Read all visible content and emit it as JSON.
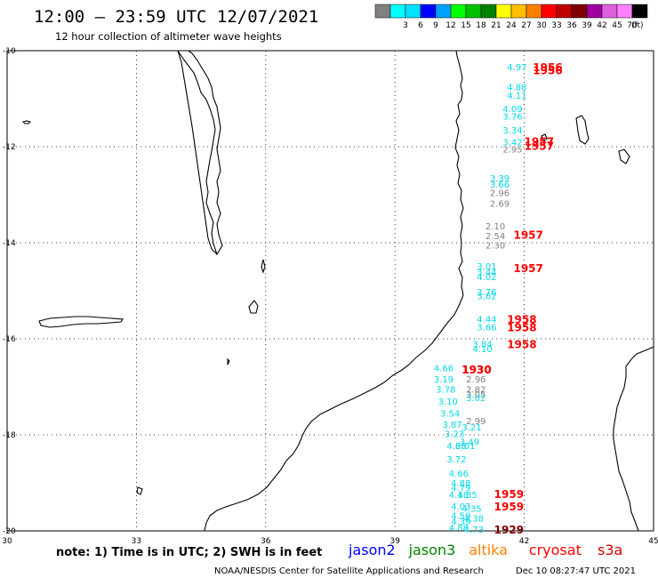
{
  "header": {
    "title": "12:00 — 23:59 UTC 12/07/2021",
    "subtitle": "12 hour collection of altimeter wave heights"
  },
  "colorbar": {
    "unit_label": "(ft)",
    "bins": [
      {
        "label": "",
        "color": "#808080"
      },
      {
        "label": "3",
        "color": "#00ffff"
      },
      {
        "label": "6",
        "color": "#00e0ff"
      },
      {
        "label": "9",
        "color": "#0000ff"
      },
      {
        "label": "12",
        "color": "#00a0ff"
      },
      {
        "label": "15",
        "color": "#00ff00"
      },
      {
        "label": "18",
        "color": "#00c000"
      },
      {
        "label": "21",
        "color": "#008000"
      },
      {
        "label": "24",
        "color": "#ffff00"
      },
      {
        "label": "27",
        "color": "#ffc000"
      },
      {
        "label": "30",
        "color": "#ff8000"
      },
      {
        "label": "33",
        "color": "#ff0000"
      },
      {
        "label": "36",
        "color": "#c00000"
      },
      {
        "label": "39",
        "color": "#800000"
      },
      {
        "label": "42",
        "color": "#a000a0"
      },
      {
        "label": "45",
        "color": "#e060e0"
      },
      {
        "label": "70",
        "color": "#ff80ff"
      },
      {
        "label": "",
        "color": "#000000"
      }
    ]
  },
  "axes": {
    "lon_labels": [
      "30",
      "33",
      "36",
      "39",
      "42",
      "45"
    ],
    "lat_labels": [
      "-10",
      "-12",
      "-14",
      "-16",
      "-18",
      "-20"
    ]
  },
  "legend": {
    "note": "note: 1) Time is in UTC; 2) SWH is in feet",
    "satellites": [
      {
        "name": "jason2",
        "color": "#0000ff"
      },
      {
        "name": "jason3",
        "color": "#008000"
      },
      {
        "name": "altika",
        "color": "#ff8000"
      },
      {
        "name": "cryosat",
        "color": "#ff0000"
      },
      {
        "name": "s3a",
        "color": "#cc0000"
      }
    ]
  },
  "footer": {
    "credit": "NOAA/NESDIS Center for Satellite Applications and Research",
    "timestamp": "Dec 10 08:27:47 UTC 2021"
  },
  "colors": {
    "cyan": "#00d8e8",
    "gray": "#808080",
    "red": "#ff0000",
    "darkred": "#800000",
    "grid": "#000000"
  },
  "map_data": {
    "lon_range": [
      30,
      45
    ],
    "lat_range": [
      -20,
      -10
    ],
    "observations": [
      {
        "lon": 41.6,
        "lat": -10.33,
        "label": "4.97",
        "color": "cyan"
      },
      {
        "lon": 41.6,
        "lat": -10.75,
        "label": "4.88",
        "color": "cyan"
      },
      {
        "lon": 41.6,
        "lat": -10.93,
        "label": "4.11",
        "color": "cyan"
      },
      {
        "lon": 41.5,
        "lat": -11.2,
        "label": "4.09",
        "color": "cyan"
      },
      {
        "lon": 41.5,
        "lat": -11.36,
        "label": "3.76",
        "color": "cyan"
      },
      {
        "lon": 41.5,
        "lat": -11.65,
        "label": "3.34",
        "color": "cyan"
      },
      {
        "lon": 41.5,
        "lat": -11.9,
        "label": "3.42",
        "color": "cyan"
      },
      {
        "lon": 41.5,
        "lat": -12.05,
        "label": "2.95",
        "color": "gray"
      },
      {
        "lon": 41.2,
        "lat": -12.65,
        "label": "3.39",
        "color": "cyan"
      },
      {
        "lon": 41.2,
        "lat": -12.78,
        "label": "3.66",
        "color": "cyan"
      },
      {
        "lon": 41.2,
        "lat": -12.95,
        "label": "2.96",
        "color": "gray"
      },
      {
        "lon": 41.2,
        "lat": -13.18,
        "label": "2.69",
        "color": "gray"
      },
      {
        "lon": 41.1,
        "lat": -13.65,
        "label": "2.10",
        "color": "gray"
      },
      {
        "lon": 41.1,
        "lat": -13.85,
        "label": "2.54",
        "color": "gray"
      },
      {
        "lon": 41.1,
        "lat": -14.05,
        "label": "2.30",
        "color": "gray"
      },
      {
        "lon": 40.9,
        "lat": -14.48,
        "label": "3.01",
        "color": "cyan"
      },
      {
        "lon": 40.9,
        "lat": -14.6,
        "label": "3.44",
        "color": "cyan"
      },
      {
        "lon": 40.9,
        "lat": -14.7,
        "label": "4.02",
        "color": "cyan"
      },
      {
        "lon": 40.9,
        "lat": -15.02,
        "label": "3.76",
        "color": "cyan"
      },
      {
        "lon": 40.9,
        "lat": -15.1,
        "label": "3.62",
        "color": "cyan"
      },
      {
        "lon": 40.9,
        "lat": -15.58,
        "label": "4.44",
        "color": "cyan"
      },
      {
        "lon": 40.9,
        "lat": -15.75,
        "label": "3.66",
        "color": "cyan"
      },
      {
        "lon": 40.8,
        "lat": -16.1,
        "label": "3.84",
        "color": "cyan"
      },
      {
        "lon": 40.8,
        "lat": -16.2,
        "label": "4.10",
        "color": "cyan"
      },
      {
        "lon": 39.9,
        "lat": -16.6,
        "label": "4.66",
        "color": "cyan"
      },
      {
        "lon": 39.9,
        "lat": -16.83,
        "label": "3.19",
        "color": "cyan"
      },
      {
        "lon": 40.65,
        "lat": -16.83,
        "label": "2.96",
        "color": "gray"
      },
      {
        "lon": 39.95,
        "lat": -17.05,
        "label": "3.78",
        "color": "cyan"
      },
      {
        "lon": 40.65,
        "lat": -17.05,
        "label": "2.82",
        "color": "gray"
      },
      {
        "lon": 40.65,
        "lat": -17.15,
        "label": "3.05",
        "color": "gray"
      },
      {
        "lon": 40.65,
        "lat": -17.22,
        "label": "3.02",
        "color": "cyan"
      },
      {
        "lon": 40.0,
        "lat": -17.3,
        "label": "3.10",
        "color": "cyan"
      },
      {
        "lon": 40.05,
        "lat": -17.55,
        "label": "3.54",
        "color": "cyan"
      },
      {
        "lon": 40.65,
        "lat": -17.7,
        "label": "2.99",
        "color": "gray"
      },
      {
        "lon": 40.1,
        "lat": -17.78,
        "label": "3.87",
        "color": "cyan"
      },
      {
        "lon": 40.55,
        "lat": -17.83,
        "label": "3.21",
        "color": "cyan"
      },
      {
        "lon": 40.15,
        "lat": -17.97,
        "label": "3.23",
        "color": "cyan"
      },
      {
        "lon": 40.5,
        "lat": -18.14,
        "label": "3.49",
        "color": "cyan"
      },
      {
        "lon": 40.2,
        "lat": -18.22,
        "label": "4.68",
        "color": "cyan"
      },
      {
        "lon": 40.4,
        "lat": -18.22,
        "label": "3.01",
        "color": "cyan"
      },
      {
        "lon": 40.2,
        "lat": -18.5,
        "label": "3.72",
        "color": "cyan"
      },
      {
        "lon": 40.25,
        "lat": -18.8,
        "label": "4.66",
        "color": "cyan"
      },
      {
        "lon": 40.3,
        "lat": -19.0,
        "label": "4.88",
        "color": "cyan"
      },
      {
        "lon": 40.3,
        "lat": -19.09,
        "label": "4.79",
        "color": "cyan"
      },
      {
        "lon": 40.25,
        "lat": -19.24,
        "label": "4.18",
        "color": "cyan"
      },
      {
        "lon": 40.45,
        "lat": -19.24,
        "label": "4.35",
        "color": "cyan"
      },
      {
        "lon": 40.3,
        "lat": -19.48,
        "label": "4.03",
        "color": "cyan"
      },
      {
        "lon": 40.55,
        "lat": -19.53,
        "label": "4.35",
        "color": "cyan"
      },
      {
        "lon": 40.3,
        "lat": -19.68,
        "label": "4.59",
        "color": "cyan"
      },
      {
        "lon": 40.6,
        "lat": -19.73,
        "label": "4.38",
        "color": "cyan"
      },
      {
        "lon": 40.3,
        "lat": -19.8,
        "label": "4.39",
        "color": "cyan"
      },
      {
        "lon": 40.25,
        "lat": -19.93,
        "label": "4.88",
        "color": "cyan"
      },
      {
        "lon": 40.6,
        "lat": -19.96,
        "label": "4.73",
        "color": "cyan"
      }
    ],
    "time_stamps": [
      {
        "lon": 42.2,
        "lat": -10.33,
        "label": "1956",
        "color": "red"
      },
      {
        "lon": 42.2,
        "lat": -10.4,
        "label": "1956",
        "color": "red"
      },
      {
        "lon": 42.0,
        "lat": -11.88,
        "label": "1957",
        "color": "red"
      },
      {
        "lon": 42.0,
        "lat": -11.97,
        "label": "1957",
        "color": "red"
      },
      {
        "lon": 41.75,
        "lat": -13.82,
        "label": "1957",
        "color": "red"
      },
      {
        "lon": 41.75,
        "lat": -14.52,
        "label": "1957",
        "color": "red"
      },
      {
        "lon": 41.6,
        "lat": -15.58,
        "label": "1958",
        "color": "red"
      },
      {
        "lon": 41.6,
        "lat": -15.75,
        "label": "1958",
        "color": "red"
      },
      {
        "lon": 41.6,
        "lat": -16.1,
        "label": "1958",
        "color": "red"
      },
      {
        "lon": 40.55,
        "lat": -16.63,
        "label": "1930",
        "color": "darkred"
      },
      {
        "lon": 40.55,
        "lat": -16.63,
        "label": "1930",
        "color": "red"
      },
      {
        "lon": 41.3,
        "lat": -19.22,
        "label": "1959",
        "color": "red"
      },
      {
        "lon": 41.3,
        "lat": -19.48,
        "label": "1959",
        "color": "red"
      },
      {
        "lon": 41.3,
        "lat": -19.96,
        "label": "1929",
        "color": "darkred"
      }
    ]
  }
}
